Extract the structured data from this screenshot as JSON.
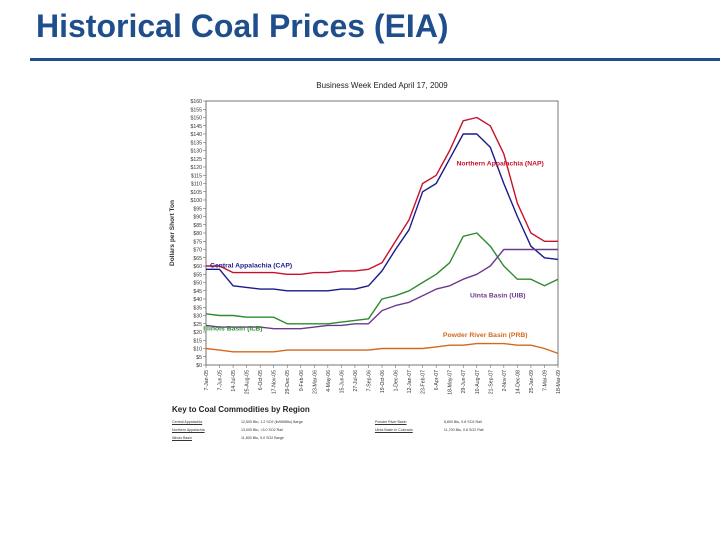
{
  "slide": {
    "title": "Historical Coal Prices (EIA)"
  },
  "colors": {
    "title": "#1f4e8c",
    "nap": "#c8102e",
    "cap": "#1a1a8c",
    "iib": "#2e8b2e",
    "uib": "#6b3a8c",
    "prb": "#d2691e"
  },
  "chart_data": {
    "type": "line",
    "title": "Business Week Ended April 17, 2009",
    "ylabel": "Dollars per Short Ton",
    "xlabel": "",
    "ylim": [
      0,
      160
    ],
    "y_ticks": [
      "$0",
      "$5",
      "$10",
      "$15",
      "$20",
      "$25",
      "$30",
      "$35",
      "$40",
      "$45",
      "$50",
      "$55",
      "$60",
      "$65",
      "$70",
      "$75",
      "$80",
      "$85",
      "$90",
      "$95",
      "$100",
      "$105",
      "$110",
      "$115",
      "$120",
      "$125",
      "$130",
      "$135",
      "$140",
      "$145",
      "$150",
      "$155",
      "$160"
    ],
    "x_ticks": [
      "7-Jan-05",
      "7-Jun-05",
      "14-Jul-05",
      "25-Aug-05",
      "6-Oct-05",
      "17-Nov-05",
      "29-Dec-05",
      "9-Feb-06",
      "23-Mar-06",
      "4-May-06",
      "15-Jun-06",
      "27-Jul-06",
      "7-Sep-06",
      "19-Oct-06",
      "1-Dec-06",
      "12-Jan-07",
      "23-Feb-07",
      "6-Apr-07",
      "18-May-07",
      "29-Jun-07",
      "10-Aug-07",
      "21-Sep-07",
      "2-Nov-07",
      "14-Dec-08",
      "25-Jan-09",
      "7-Mar-09",
      "18-Mar-09"
    ],
    "x_count": 27,
    "series": [
      {
        "name": "Northern Appalachia (NAP)",
        "label_color": "#c8102e",
        "color": "#c8102e",
        "values": [
          60,
          60,
          56,
          56,
          56,
          56,
          55,
          55,
          56,
          56,
          57,
          57,
          58,
          62,
          75,
          88,
          110,
          115,
          130,
          148,
          150,
          145,
          128,
          98,
          80,
          75,
          75
        ]
      },
      {
        "name": "Central Appalachia (CAP)",
        "label_color": "#1a1a8c",
        "color": "#1a1a8c",
        "values": [
          58,
          58,
          48,
          47,
          46,
          46,
          45,
          45,
          45,
          45,
          46,
          46,
          48,
          57,
          70,
          82,
          105,
          110,
          125,
          140,
          140,
          132,
          110,
          90,
          72,
          65,
          64
        ]
      },
      {
        "name": "Illinois Basin (ILB)",
        "label_color": "#2e8b2e",
        "color": "#2e8b2e",
        "values": [
          31,
          30,
          30,
          29,
          29,
          29,
          25,
          25,
          25,
          25,
          26,
          27,
          28,
          40,
          42,
          45,
          50,
          55,
          62,
          78,
          80,
          72,
          60,
          52,
          52,
          48,
          52
        ]
      },
      {
        "name": "Uinta Basin (UIB)",
        "label_color": "#6b3a8c",
        "color": "#6b3a8c",
        "values": [
          24,
          23,
          23,
          23,
          23,
          22,
          22,
          22,
          23,
          24,
          24,
          25,
          25,
          33,
          36,
          38,
          42,
          46,
          48,
          52,
          55,
          60,
          70,
          70,
          70,
          70,
          70
        ]
      },
      {
        "name": "Powder River Basin (PRB)",
        "label_color": "#d2691e",
        "color": "#d2691e",
        "values": [
          10,
          9,
          8,
          8,
          8,
          8,
          9,
          9,
          9,
          9,
          9,
          9,
          9,
          10,
          10,
          10,
          10,
          11,
          12,
          12,
          13,
          13,
          13,
          12,
          12,
          10,
          7
        ]
      }
    ],
    "series_labels": [
      {
        "series": 0,
        "text": "Northern Appalachia (NAP)",
        "at": [
          18.5,
          121
        ]
      },
      {
        "series": 1,
        "text": "Central Appalachia (CAP)",
        "at": [
          0.3,
          59
        ]
      },
      {
        "series": 2,
        "text": "Illinois Basin (ILB)",
        "at": [
          -0.2,
          21
        ]
      },
      {
        "series": 3,
        "text": "Uinta Basin (UIB)",
        "at": [
          19.5,
          41
        ]
      },
      {
        "series": 4,
        "text": "Powder River Basin (PRB)",
        "at": [
          17.5,
          17
        ]
      }
    ]
  },
  "legend_key": {
    "title": "Key to Coal Commodities by Region",
    "rows": [
      {
        "name": "Central Appalachia",
        "spec": "12,500 Btu, 1.2 SO2 (lb/MMBtu) Barge",
        "name2": "Powder River Basin",
        "spec2": "8,800 Btu, 0.8 SO2 Rail"
      },
      {
        "name": "Northern Appalachia",
        "spec": "13,000 Btu, <3.0 SO2 Rail",
        "name2": "Uinta Basin in Colorado",
        "spec2": "11,700 Btu, 0.8 SO2 Rail"
      },
      {
        "name": "Illinois Basin",
        "spec": "11,800 Btu, 5.0 SO2 Barge",
        "name2": "",
        "spec2": ""
      }
    ]
  }
}
